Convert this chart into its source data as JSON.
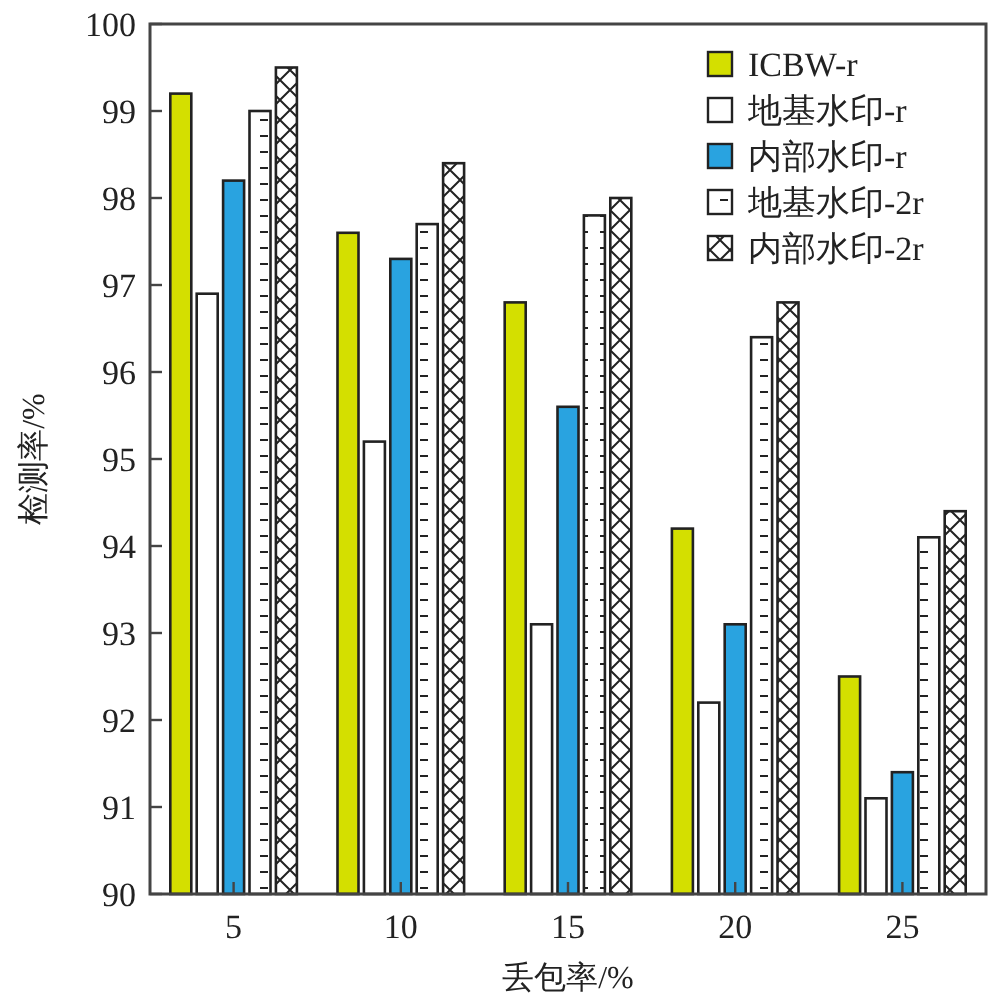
{
  "chart_data": {
    "type": "bar",
    "xlabel": "丢包率/%",
    "ylabel": "检测率/%",
    "categories": [
      "5",
      "10",
      "15",
      "20",
      "25"
    ],
    "series": [
      {
        "name": "ICBW-r",
        "color": "#d4df00",
        "values": [
          99.2,
          97.6,
          96.8,
          94.2,
          92.5
        ]
      },
      {
        "name": "地基水印-r",
        "color": "#ffffff",
        "values": [
          96.9,
          95.2,
          93.1,
          92.2,
          91.1
        ]
      },
      {
        "name": "内部水印-r",
        "color": "#29a3e0",
        "values": [
          98.2,
          97.3,
          95.6,
          93.1,
          91.4
        ]
      },
      {
        "name": "地基水印-2r",
        "color": "#222222",
        "values": [
          99.0,
          97.7,
          97.8,
          96.4,
          94.1
        ]
      },
      {
        "name": "内部水印-2r",
        "color": "#222222",
        "values": [
          99.5,
          98.4,
          98.0,
          96.8,
          94.4
        ]
      }
    ],
    "ylim": [
      90,
      100
    ],
    "yticks": [
      90,
      91,
      92,
      93,
      94,
      95,
      96,
      97,
      98,
      99,
      100
    ],
    "grid": false,
    "legend": "top right"
  }
}
